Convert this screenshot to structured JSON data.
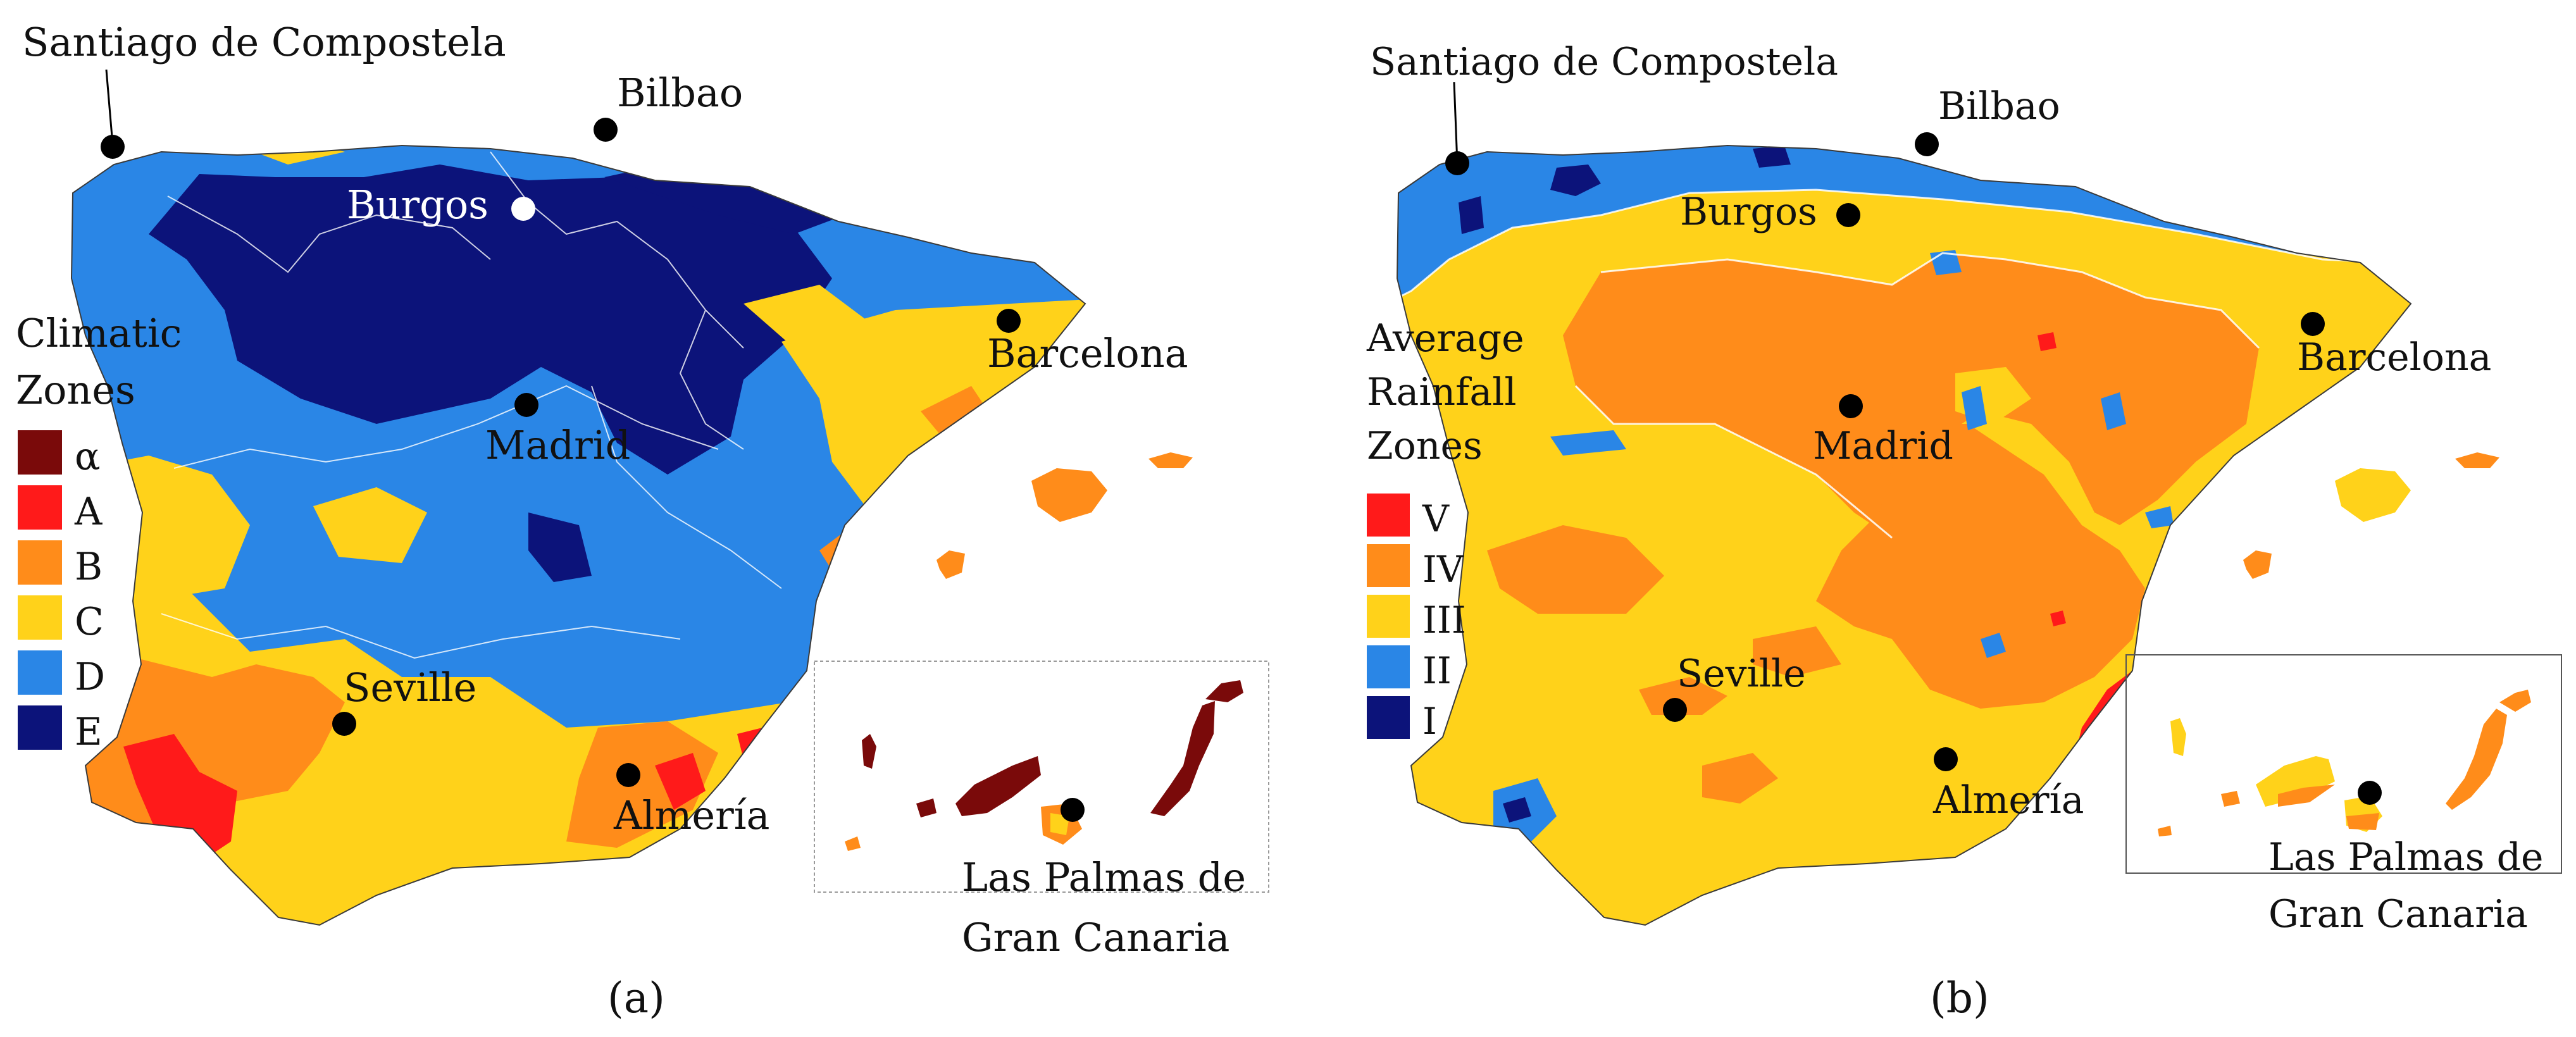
{
  "panel_a": {
    "caption": "(a)",
    "legend": {
      "title_line1": "Climatic",
      "title_line2": "Zones",
      "items": [
        {
          "label": "α",
          "color": "#7a0a0a"
        },
        {
          "label": "A",
          "color": "#ff1a1a"
        },
        {
          "label": "B",
          "color": "#ff8c1a"
        },
        {
          "label": "C",
          "color": "#ffd21a"
        },
        {
          "label": "D",
          "color": "#2a86e6"
        },
        {
          "label": "E",
          "color": "#0c137a"
        }
      ]
    },
    "cities": {
      "santiago": "Santiago de Compostela",
      "bilbao": "Bilbao",
      "burgos": "Burgos",
      "barcelona": "Barcelona",
      "madrid": "Madrid",
      "seville": "Seville",
      "almeria": "Almería",
      "laspalmas_1": "Las Palmas de",
      "laspalmas_2": "Gran Canaria"
    }
  },
  "panel_b": {
    "caption": "(b)",
    "legend": {
      "title_line1": "Average",
      "title_line2": "Rainfall",
      "title_line3": "Zones",
      "items": [
        {
          "label": "V",
          "color": "#ff1a1a"
        },
        {
          "label": "IV",
          "color": "#ff8c1a"
        },
        {
          "label": "III",
          "color": "#ffd21a"
        },
        {
          "label": "II",
          "color": "#2a86e6"
        },
        {
          "label": "I",
          "color": "#0c137a"
        }
      ]
    },
    "cities": {
      "santiago": "Santiago de Compostela",
      "bilbao": "Bilbao",
      "burgos": "Burgos",
      "barcelona": "Barcelona",
      "madrid": "Madrid",
      "seville": "Seville",
      "almeria": "Almería",
      "laspalmas_1": "Las Palmas de",
      "laspalmas_2": "Gran Canaria"
    }
  }
}
